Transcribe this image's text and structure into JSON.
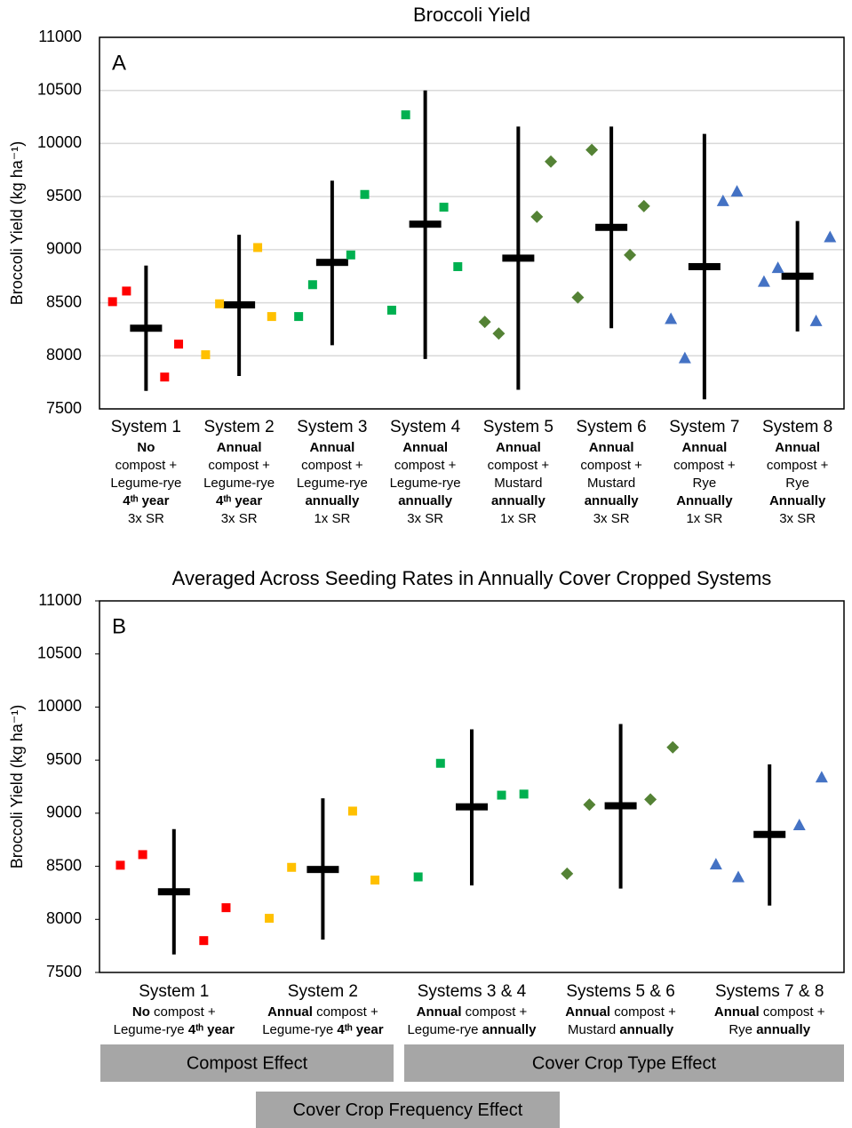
{
  "chart_data": [
    {
      "type": "dot",
      "title": "Broccoli Yield",
      "panel": "A",
      "y_label": "Broccoli Yield (kg ha⁻¹)",
      "ylim": [
        7500,
        11000
      ],
      "yticks": [
        7500,
        8000,
        8500,
        9000,
        9500,
        10000,
        10500,
        11000
      ],
      "grid": true,
      "groups": [
        {
          "name": "System 1",
          "color": "#ff0000",
          "marker": "square",
          "points": [
            8510,
            8610,
            7800,
            8110
          ],
          "mean": 8260,
          "low": 7670,
          "high": 8850,
          "lines": [
            [
              {
                "text": "No",
                "bold": true
              }
            ],
            [
              {
                "text": "compost +"
              }
            ],
            [
              {
                "text": "Legume-rye"
              }
            ],
            [
              {
                "text": "4ᵗʰ year",
                "bold": true
              }
            ],
            [
              {
                "text": "3x SR"
              }
            ]
          ]
        },
        {
          "name": "System 2",
          "color": "#ffc000",
          "marker": "square",
          "points": [
            8010,
            8490,
            9020,
            8370
          ],
          "mean": 8480,
          "low": 7810,
          "high": 9140,
          "lines": [
            [
              {
                "text": "Annual",
                "bold": true
              }
            ],
            [
              {
                "text": "compost +"
              }
            ],
            [
              {
                "text": "Legume-rye"
              }
            ],
            [
              {
                "text": "4ᵗʰ year",
                "bold": true
              }
            ],
            [
              {
                "text": "3x SR"
              }
            ]
          ]
        },
        {
          "name": "System 3",
          "color": "#00b050",
          "marker": "square",
          "points": [
            8370,
            8670,
            8950,
            9520
          ],
          "mean": 8880,
          "low": 8100,
          "high": 9650,
          "lines": [
            [
              {
                "text": "Annual",
                "bold": true
              }
            ],
            [
              {
                "text": "compost +"
              }
            ],
            [
              {
                "text": "Legume-rye"
              }
            ],
            [
              {
                "text": "annually",
                "bold": true
              }
            ],
            [
              {
                "text": "1x SR"
              }
            ]
          ]
        },
        {
          "name": "System 4",
          "color": "#00b050",
          "marker": "square",
          "points": [
            8430,
            10270,
            9400,
            8840
          ],
          "mean": 9240,
          "low": 7970,
          "high": 10500,
          "lines": [
            [
              {
                "text": "Annual",
                "bold": true
              }
            ],
            [
              {
                "text": "compost +"
              }
            ],
            [
              {
                "text": "Legume-rye"
              }
            ],
            [
              {
                "text": "annually",
                "bold": true
              }
            ],
            [
              {
                "text": "3x SR"
              }
            ]
          ]
        },
        {
          "name": "System 5",
          "color": "#548235",
          "marker": "diamond",
          "points": [
            8320,
            8210,
            9310,
            9830
          ],
          "mean": 8920,
          "low": 7680,
          "high": 10160,
          "lines": [
            [
              {
                "text": "Annual",
                "bold": true
              }
            ],
            [
              {
                "text": "compost +"
              }
            ],
            [
              {
                "text": "Mustard"
              }
            ],
            [
              {
                "text": "annually",
                "bold": true
              }
            ],
            [
              {
                "text": "1x SR"
              }
            ]
          ]
        },
        {
          "name": "System 6",
          "color": "#548235",
          "marker": "diamond",
          "points": [
            8550,
            9940,
            8950,
            9410
          ],
          "mean": 9210,
          "low": 8260,
          "high": 10160,
          "lines": [
            [
              {
                "text": "Annual",
                "bold": true
              }
            ],
            [
              {
                "text": "compost +"
              }
            ],
            [
              {
                "text": "Mustard"
              }
            ],
            [
              {
                "text": "annually",
                "bold": true
              }
            ],
            [
              {
                "text": "3x SR"
              }
            ]
          ]
        },
        {
          "name": "System 7",
          "color": "#4472c4",
          "marker": "triangle",
          "points": [
            8350,
            7980,
            9460,
            9550
          ],
          "mean": 8840,
          "low": 7590,
          "high": 10090,
          "lines": [
            [
              {
                "text": "Annual",
                "bold": true
              }
            ],
            [
              {
                "text": "compost +"
              }
            ],
            [
              {
                "text": "Rye"
              }
            ],
            [
              {
                "text": "Annually",
                "bold": true
              }
            ],
            [
              {
                "text": "1x SR"
              }
            ]
          ]
        },
        {
          "name": "System 8",
          "color": "#4472c4",
          "marker": "triangle",
          "points": [
            8700,
            8830,
            8330,
            9120
          ],
          "mean": 8750,
          "low": 8230,
          "high": 9270,
          "lines": [
            [
              {
                "text": "Annual",
                "bold": true
              }
            ],
            [
              {
                "text": "compost +"
              }
            ],
            [
              {
                "text": "Rye"
              }
            ],
            [
              {
                "text": "Annually",
                "bold": true
              }
            ],
            [
              {
                "text": "3x SR"
              }
            ]
          ]
        }
      ]
    },
    {
      "type": "dot",
      "title": "Averaged Across Seeding Rates in Annually Cover Cropped Systems",
      "panel": "B",
      "y_label": "Broccoli Yield (kg ha⁻¹)",
      "ylim": [
        7500,
        11000
      ],
      "yticks": [
        7500,
        8000,
        8500,
        9000,
        9500,
        10000,
        10500,
        11000
      ],
      "grid": false,
      "groups": [
        {
          "name": "System 1",
          "color": "#ff0000",
          "marker": "square",
          "points": [
            8510,
            8610,
            7800,
            8110
          ],
          "mean": 8260,
          "low": 7670,
          "high": 8850,
          "lines": [
            [
              {
                "text": "No",
                "bold": true
              },
              {
                "text": " compost +"
              }
            ],
            [
              {
                "text": "Legume-rye "
              },
              {
                "text": "4ᵗʰ year",
                "bold": true
              }
            ]
          ]
        },
        {
          "name": "System 2",
          "color": "#ffc000",
          "marker": "square",
          "points": [
            8010,
            8490,
            9020,
            8370
          ],
          "mean": 8470,
          "low": 7810,
          "high": 9140,
          "lines": [
            [
              {
                "text": "Annual",
                "bold": true
              },
              {
                "text": " compost +"
              }
            ],
            [
              {
                "text": "Legume-rye "
              },
              {
                "text": "4ᵗʰ year",
                "bold": true
              }
            ]
          ]
        },
        {
          "name": "Systems 3 & 4",
          "color": "#00b050",
          "marker": "square",
          "points": [
            8400,
            9470,
            9170,
            9180
          ],
          "mean": 9060,
          "low": 8320,
          "high": 9790,
          "lines": [
            [
              {
                "text": "Annual",
                "bold": true
              },
              {
                "text": " compost +"
              }
            ],
            [
              {
                "text": "Legume-rye "
              },
              {
                "text": "annually",
                "bold": true
              }
            ]
          ]
        },
        {
          "name": "Systems 5 & 6",
          "color": "#548235",
          "marker": "diamond",
          "points": [
            8430,
            9080,
            9130,
            9620
          ],
          "mean": 9070,
          "low": 8290,
          "high": 9840,
          "lines": [
            [
              {
                "text": "Annual",
                "bold": true
              },
              {
                "text": " compost +"
              }
            ],
            [
              {
                "text": "Mustard "
              },
              {
                "text": "annually",
                "bold": true
              }
            ]
          ]
        },
        {
          "name": "Systems 7 & 8",
          "color": "#4472c4",
          "marker": "triangle",
          "points": [
            8520,
            8400,
            8890,
            9340
          ],
          "mean": 8800,
          "low": 8130,
          "high": 9460,
          "lines": [
            [
              {
                "text": "Annual",
                "bold": true
              },
              {
                "text": " compost +"
              }
            ],
            [
              {
                "text": "Rye "
              },
              {
                "text": "annually",
                "bold": true
              }
            ]
          ]
        }
      ],
      "annotations": [
        "Compost Effect",
        "Cover Crop Type Effect",
        "Cover Crop Frequency Effect"
      ]
    }
  ]
}
